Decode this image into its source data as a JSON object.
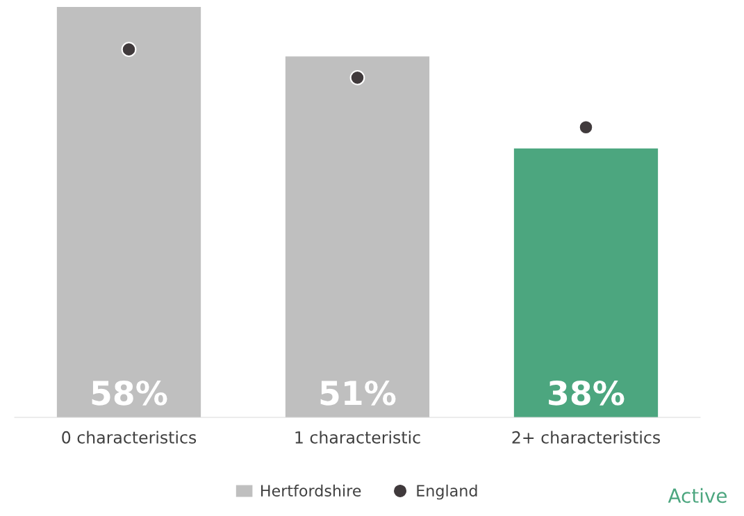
{
  "chart_data": {
    "type": "bar",
    "categories": [
      "0 characteristics",
      "1 characteristic",
      "2+ characteristics"
    ],
    "series": [
      {
        "name": "Hertfordshire",
        "color": "#bfbfbf",
        "colors": [
          "#bfbfbf",
          "#bfbfbf",
          "#4ca67f"
        ],
        "values": [
          58,
          51,
          38
        ],
        "value_labels": [
          "58%",
          "51%",
          "38%"
        ]
      },
      {
        "name": "England",
        "type": "scatter",
        "color": "#403a3c",
        "values": [
          52,
          48,
          41
        ]
      }
    ],
    "legend": "bottom",
    "grid": false,
    "marker": "circle",
    "annotations": [
      "Active"
    ]
  }
}
